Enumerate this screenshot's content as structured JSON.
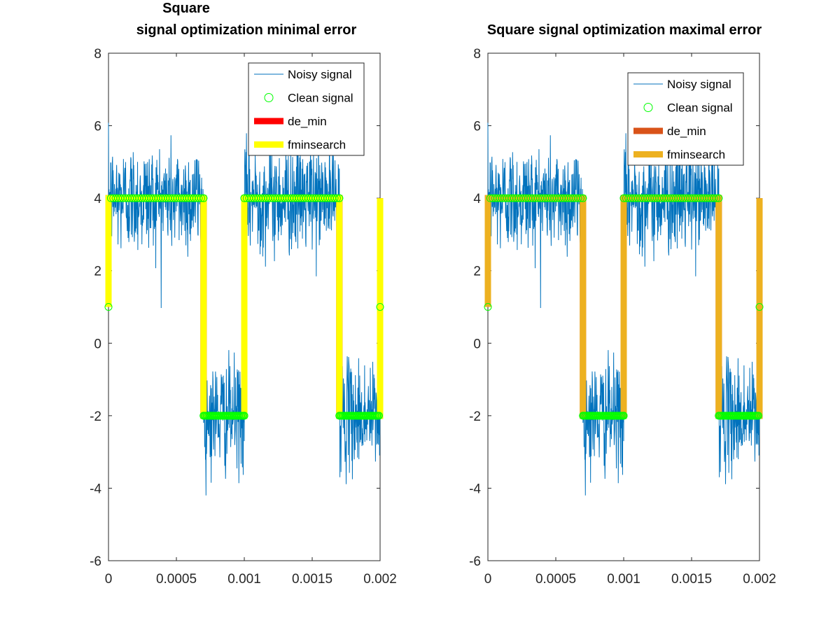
{
  "chart_data": [
    {
      "type": "line",
      "title_lines": [
        "Square",
        "signal optimization minimal error"
      ],
      "xlim": [
        0,
        0.002
      ],
      "ylim": [
        -6,
        8
      ],
      "xticks": [
        "0",
        "0.0005",
        "0.001",
        "0.0015",
        "0.002"
      ],
      "xtick_values": [
        0,
        0.0005,
        0.001,
        0.0015,
        0.002
      ],
      "yticks": [
        "-6",
        "-4",
        "-2",
        "0",
        "2",
        "4",
        "6",
        "8"
      ],
      "ytick_values": [
        -6,
        -4,
        -2,
        0,
        2,
        4,
        6,
        8
      ],
      "legend_position": "top-right",
      "series": [
        {
          "name": "Noisy signal",
          "color": "#0072bd",
          "style": "noisy-line",
          "segments": [
            {
              "x": [
                0,
                0.0007
              ],
              "base": 4
            },
            {
              "x": [
                0.0007,
                0.001
              ],
              "base": -2
            },
            {
              "x": [
                0.001,
                0.0017
              ],
              "base": 4
            },
            {
              "x": [
                0.0017,
                0.002
              ],
              "base": -2
            }
          ],
          "approx_range": [
            -4.2,
            6.5
          ]
        },
        {
          "name": "Clean signal",
          "color": "#00ff00",
          "style": "circle-markers",
          "x": [
            0,
            0.0007,
            0.0007,
            0.001,
            0.001,
            0.0017,
            0.0017,
            0.002
          ],
          "y": [
            1,
            4,
            -2,
            -2,
            4,
            4,
            -2,
            1
          ]
        },
        {
          "name": "de_min",
          "color": "#ff0000",
          "style": "thick-line",
          "x": [
            0,
            0,
            0.0007,
            0.0007,
            0.001,
            0.001,
            0.0017,
            0.0017,
            0.002,
            0.002
          ],
          "y": [
            1,
            4,
            4,
            -2,
            -2,
            4,
            4,
            -2,
            -2,
            4
          ]
        },
        {
          "name": "fminsearch",
          "color": "#ffff00",
          "style": "thick-line",
          "x": [
            0,
            0,
            0.0007,
            0.0007,
            0.001,
            0.001,
            0.0017,
            0.0017,
            0.002,
            0.002
          ],
          "y": [
            1,
            4,
            4,
            -2,
            -2,
            4,
            4,
            -2,
            -2,
            4
          ]
        }
      ]
    },
    {
      "type": "line",
      "title_lines": [
        "Square signal optimization maximal error"
      ],
      "xlim": [
        0,
        0.002
      ],
      "ylim": [
        -6,
        8
      ],
      "xticks": [
        "0",
        "0.0005",
        "0.001",
        "0.0015",
        "0.002"
      ],
      "xtick_values": [
        0,
        0.0005,
        0.001,
        0.0015,
        0.002
      ],
      "yticks": [
        "-6",
        "-4",
        "-2",
        "0",
        "2",
        "4",
        "6",
        "8"
      ],
      "ytick_values": [
        -6,
        -4,
        -2,
        0,
        2,
        4,
        6,
        8
      ],
      "legend_position": "top-right",
      "series": [
        {
          "name": "Noisy signal",
          "color": "#0072bd",
          "style": "noisy-line",
          "segments": [
            {
              "x": [
                0,
                0.0007
              ],
              "base": 4
            },
            {
              "x": [
                0.0007,
                0.001
              ],
              "base": -2
            },
            {
              "x": [
                0.001,
                0.0017
              ],
              "base": 4
            },
            {
              "x": [
                0.0017,
                0.002
              ],
              "base": -2
            }
          ],
          "approx_range": [
            -4.2,
            6.5
          ]
        },
        {
          "name": "Clean signal",
          "color": "#00ff00",
          "style": "circle-markers",
          "x": [
            0,
            0.0007,
            0.0007,
            0.001,
            0.001,
            0.0017,
            0.0017,
            0.002
          ],
          "y": [
            1,
            4,
            -2,
            -2,
            4,
            4,
            -2,
            1
          ]
        },
        {
          "name": "de_min",
          "color": "#d95319",
          "style": "thick-line",
          "x": [
            0,
            0,
            0.0007,
            0.0007,
            0.001,
            0.001,
            0.0017,
            0.0017,
            0.002,
            0.002
          ],
          "y": [
            1,
            4,
            4,
            -2,
            -2,
            4,
            4,
            -2,
            -2,
            4
          ]
        },
        {
          "name": "fminsearch",
          "color": "#edb120",
          "style": "thick-line",
          "x": [
            0,
            0,
            0.0007,
            0.0007,
            0.001,
            0.001,
            0.0017,
            0.0017,
            0.002,
            0.002
          ],
          "y": [
            1,
            4,
            4,
            -2,
            -2,
            4,
            4,
            -2,
            -2,
            4
          ]
        }
      ]
    }
  ]
}
